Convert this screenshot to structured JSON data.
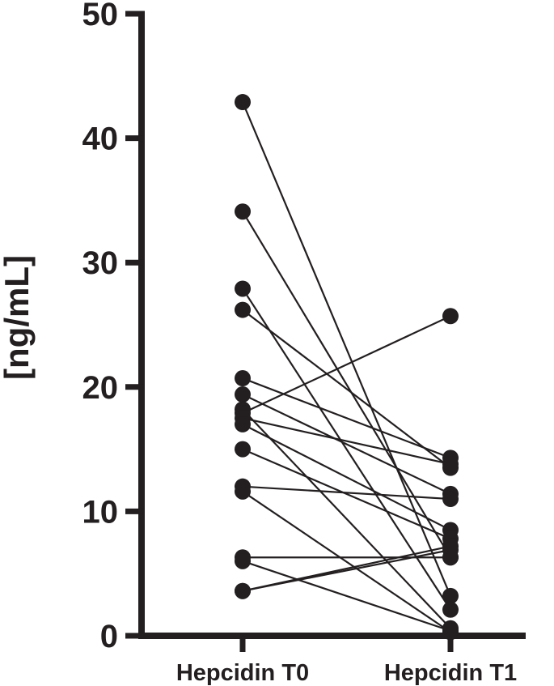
{
  "chart_data": {
    "type": "scatter",
    "subtype": "paired before-after",
    "title": "",
    "xlabel": "",
    "ylabel": "[ng/mL]",
    "categories": [
      "Hepcidin T0",
      "Hepcidin T1"
    ],
    "ylim": [
      0,
      50
    ],
    "yticks": [
      0,
      10,
      20,
      30,
      40,
      50
    ],
    "ytick_labels": [
      "0",
      "10",
      "20",
      "30",
      "40",
      "50"
    ],
    "grid": false,
    "legend": "none",
    "marker_color": "#231f20",
    "line_color": "#231f20",
    "pairs": [
      {
        "t0": 42.9,
        "t1": 3.2
      },
      {
        "t0": 34.1,
        "t1": 6.3
      },
      {
        "t0": 27.9,
        "t1": 2.1
      },
      {
        "t0": 26.2,
        "t1": 13.5
      },
      {
        "t0": 20.7,
        "t1": 14.3
      },
      {
        "t0": 19.4,
        "t1": 11.4
      },
      {
        "t0": 18.2,
        "t1": 0.6
      },
      {
        "t0": 17.9,
        "t1": 25.7
      },
      {
        "t0": 17.5,
        "t1": 13.8
      },
      {
        "t0": 17.0,
        "t1": 8.5
      },
      {
        "t0": 15.0,
        "t1": 7.8
      },
      {
        "t0": 12.0,
        "t1": 11.0
      },
      {
        "t0": 11.6,
        "t1": 0.3
      },
      {
        "t0": 6.3,
        "t1": 6.3
      },
      {
        "t0": 6.0,
        "t1": 0.4
      },
      {
        "t0": 3.6,
        "t1": 7.2
      },
      {
        "t0": 3.6,
        "t1": 6.9
      }
    ]
  }
}
